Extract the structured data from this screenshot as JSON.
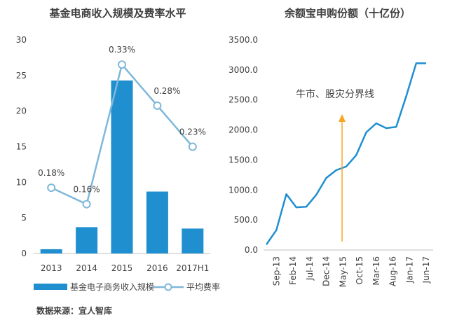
{
  "chart_data": [
    {
      "type": "bar",
      "title": "基金电商收入规模及费率水平",
      "categories": [
        "2013",
        "2014",
        "2015",
        "2016",
        "2017H1"
      ],
      "ylim": [
        0,
        30
      ],
      "yticks": [
        "0",
        "5",
        "10",
        "15",
        "20",
        "25",
        "30"
      ],
      "series": [
        {
          "name": "基金电子商务收入规模",
          "type": "bar",
          "color": "#1f8fd0",
          "values": [
            0.6,
            3.7,
            24.3,
            8.7,
            3.5
          ]
        },
        {
          "name": "平均费率",
          "type": "line",
          "color": "#7fb8d9",
          "values": [
            0.18,
            0.16,
            0.33,
            0.28,
            0.23
          ],
          "labels": [
            "0.18%",
            "0.16%",
            "0.33%",
            "0.28%",
            "0.23%"
          ],
          "ylim": [
            0.1,
            0.36
          ]
        }
      ],
      "legend": "bottom"
    },
    {
      "type": "line",
      "title": "余额宝申购份额（十亿份）",
      "xticks": [
        "Sep-13",
        "Feb-14",
        "Jul-14",
        "Dec-14",
        "May-15",
        "Oct-15",
        "Mar-16",
        "Aug-16",
        "Jan-17",
        "Jun-17"
      ],
      "ylim": [
        0,
        3500
      ],
      "yticks": [
        "0.0",
        "500.0",
        "1000.0",
        "1500.0",
        "2000.0",
        "2500.0",
        "3000.0",
        "3500.0"
      ],
      "series": [
        {
          "color": "#1f8fd0",
          "x": [
            "Jun-13",
            "Sep-13",
            "Dec-13",
            "Mar-14",
            "Jun-14",
            "Sep-14",
            "Dec-14",
            "Mar-15",
            "Jun-15",
            "Sep-15",
            "Dec-15",
            "Mar-16",
            "Jun-16",
            "Sep-16",
            "Dec-16",
            "Mar-17",
            "Jun-17"
          ],
          "values": [
            90,
            330,
            930,
            710,
            720,
            920,
            1200,
            1330,
            1390,
            1580,
            1960,
            2110,
            2030,
            2050,
            2560,
            3110,
            3110
          ]
        }
      ],
      "annotation": {
        "text": "牛市、股灾分界线",
        "color": "#f5a623"
      }
    }
  ],
  "source": "数据来源：宜人智库"
}
